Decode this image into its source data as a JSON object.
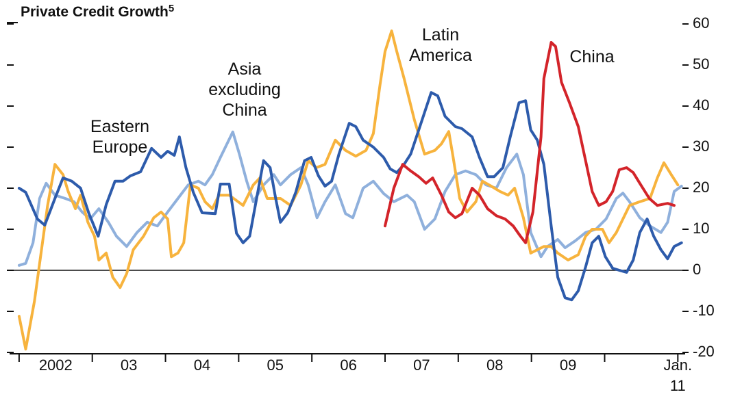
{
  "chart_data": {
    "type": "line",
    "title": "Private Credit Growth",
    "title_note": "5",
    "xlim": [
      2001.87,
      2011.1
    ],
    "ylim": [
      -20,
      60
    ],
    "yticks": [
      -20,
      -10,
      0,
      10,
      20,
      30,
      40,
      50,
      60
    ],
    "x_tick_marks": [
      2002,
      2003,
      2004,
      2005,
      2006,
      2007,
      2008,
      2009,
      2010,
      2011
    ],
    "xticks": [
      {
        "value": 2002.5,
        "label": "2002"
      },
      {
        "value": 2003.5,
        "label": "03"
      },
      {
        "value": 2004.5,
        "label": "04"
      },
      {
        "value": 2005.5,
        "label": "05"
      },
      {
        "value": 2006.5,
        "label": "06"
      },
      {
        "value": 2007.5,
        "label": "07"
      },
      {
        "value": 2008.5,
        "label": "08"
      },
      {
        "value": 2009.5,
        "label": "09"
      },
      {
        "value": 2011,
        "label": "Jan. 11"
      }
    ],
    "zero_line": 0,
    "series": [
      {
        "name": "Asia excluding China",
        "color": "#8fb0dc",
        "x": [
          2002.0,
          2002.09,
          2002.19,
          2002.28,
          2002.37,
          2002.49,
          2002.63,
          2002.75,
          2002.86,
          2002.97,
          2003.09,
          2003.22,
          2003.33,
          2003.47,
          2003.61,
          2003.75,
          2003.89,
          2004.03,
          2004.17,
          2004.31,
          2004.45,
          2004.54,
          2004.64,
          2004.75,
          2004.92,
          2005.01,
          2005.11,
          2005.2,
          2005.34,
          2005.48,
          2005.57,
          2005.71,
          2005.85,
          2005.95,
          2006.07,
          2006.18,
          2006.32,
          2006.46,
          2006.56,
          2006.7,
          2006.84,
          2006.98,
          2007.12,
          2007.3,
          2007.4,
          2007.54,
          2007.68,
          2007.82,
          2007.96,
          2008.1,
          2008.24,
          2008.38,
          2008.52,
          2008.66,
          2008.8,
          2008.89,
          2008.99,
          2009.13,
          2009.22,
          2009.36,
          2009.46,
          2009.6,
          2009.74,
          2009.88,
          2010.02,
          2010.16,
          2010.25,
          2010.34,
          2010.48,
          2010.62,
          2010.77,
          2010.86,
          2010.95,
          2011.05
        ],
        "values": [
          1.2,
          1.7,
          6.7,
          17.5,
          21.2,
          18.3,
          17.5,
          16.7,
          14.2,
          12.5,
          15,
          11.7,
          8.3,
          5.8,
          9.2,
          11.7,
          10.8,
          14.2,
          17.5,
          20.8,
          21.7,
          20.8,
          23.3,
          27.5,
          33.7,
          28.3,
          21.7,
          16.7,
          20.8,
          23.3,
          20.8,
          23.3,
          25,
          20.8,
          12.8,
          16.7,
          20.8,
          13.8,
          12.8,
          20,
          21.7,
          18.7,
          16.7,
          18.3,
          16.7,
          10,
          12.5,
          19.2,
          23.3,
          24.2,
          23.3,
          20.8,
          20,
          25,
          28.3,
          23.3,
          9.2,
          3.3,
          5.8,
          7.5,
          5.5,
          7.2,
          9.2,
          10,
          12.5,
          17.5,
          18.8,
          16.7,
          12.8,
          10.8,
          9.2,
          11.7,
          19.2,
          20.5
        ]
      },
      {
        "name": "Latin America",
        "color": "#f7b33d",
        "x": [
          2002.0,
          2002.09,
          2002.21,
          2002.3,
          2002.39,
          2002.49,
          2002.6,
          2002.67,
          2002.77,
          2002.84,
          2002.94,
          2003.03,
          2003.09,
          2003.19,
          2003.28,
          2003.38,
          2003.47,
          2003.56,
          2003.7,
          2003.84,
          2003.94,
          2004.03,
          2004.08,
          2004.17,
          2004.25,
          2004.34,
          2004.45,
          2004.54,
          2004.64,
          2004.73,
          2004.87,
          2005.06,
          2005.2,
          2005.29,
          2005.39,
          2005.57,
          2005.71,
          2005.85,
          2005.95,
          2006.06,
          2006.18,
          2006.32,
          2006.46,
          2006.6,
          2006.74,
          2006.84,
          2006.93,
          2007.0,
          2007.09,
          2007.16,
          2007.26,
          2007.4,
          2007.54,
          2007.68,
          2007.77,
          2007.87,
          2007.93,
          2008.02,
          2008.12,
          2008.24,
          2008.33,
          2008.45,
          2008.57,
          2008.68,
          2008.77,
          2008.89,
          2008.99,
          2009.08,
          2009.17,
          2009.27,
          2009.36,
          2009.5,
          2009.64,
          2009.74,
          2009.83,
          2009.97,
          2010.06,
          2010.16,
          2010.25,
          2010.34,
          2010.48,
          2010.62,
          2010.72,
          2010.81,
          2010.91,
          2011.0
        ],
        "values": [
          -11.2,
          -19.2,
          -7.5,
          4.2,
          15.8,
          25.8,
          23.3,
          19.2,
          15,
          18.3,
          11.7,
          8.3,
          2.5,
          4.2,
          -1.7,
          -4.2,
          -0.8,
          5,
          8.3,
          12.8,
          14.2,
          12.5,
          3.3,
          4.2,
          6.7,
          20.8,
          20,
          16.7,
          15,
          18.3,
          18.3,
          15.8,
          20.8,
          22.5,
          17.5,
          17.5,
          15.8,
          20.8,
          26.7,
          25,
          25.8,
          31.7,
          29.2,
          27.8,
          29.2,
          33.3,
          45,
          53.3,
          58.3,
          53.3,
          46.7,
          36.7,
          28.3,
          29.2,
          30.8,
          33.8,
          27.5,
          17.5,
          14.2,
          16.7,
          21.7,
          20.5,
          19.2,
          18.3,
          20,
          12.8,
          4.2,
          5,
          5.8,
          5.8,
          4.2,
          2.5,
          3.8,
          8.3,
          10,
          10,
          6.7,
          9.2,
          12.5,
          15.8,
          16.7,
          17.5,
          22.5,
          26.2,
          23.3,
          20.8
        ]
      },
      {
        "name": "Eastern Europe",
        "color": "#2d5bab",
        "x": [
          2002.0,
          2002.09,
          2002.25,
          2002.35,
          2002.49,
          2002.6,
          2002.72,
          2002.84,
          2002.95,
          2003.08,
          2003.19,
          2003.31,
          2003.42,
          2003.52,
          2003.66,
          2003.81,
          2003.94,
          2004.03,
          2004.12,
          2004.19,
          2004.28,
          2004.38,
          2004.5,
          2004.68,
          2004.75,
          2004.87,
          2004.97,
          2005.06,
          2005.15,
          2005.25,
          2005.34,
          2005.43,
          2005.5,
          2005.57,
          2005.67,
          2005.78,
          2005.9,
          2005.99,
          2006.09,
          2006.18,
          2006.27,
          2006.37,
          2006.51,
          2006.6,
          2006.7,
          2006.84,
          2006.98,
          2007.07,
          2007.16,
          2007.26,
          2007.35,
          2007.49,
          2007.63,
          2007.72,
          2007.82,
          2007.96,
          2008.05,
          2008.19,
          2008.29,
          2008.4,
          2008.49,
          2008.61,
          2008.71,
          2008.83,
          2008.92,
          2008.99,
          2009.08,
          2009.17,
          2009.27,
          2009.36,
          2009.46,
          2009.55,
          2009.64,
          2009.74,
          2009.83,
          2009.92,
          2010.01,
          2010.11,
          2010.2,
          2010.3,
          2010.39,
          2010.48,
          2010.58,
          2010.67,
          2010.77,
          2010.86,
          2010.95,
          2011.05
        ],
        "values": [
          20,
          19,
          12.5,
          11,
          17.5,
          22.5,
          21.7,
          20,
          14,
          8.3,
          16,
          21.7,
          21.7,
          23,
          24,
          29.7,
          27.5,
          29,
          28,
          32.5,
          25,
          19,
          14,
          13.8,
          21,
          21,
          9,
          6.7,
          8.3,
          18,
          26.7,
          25,
          18,
          11.7,
          14,
          19,
          26.7,
          27.5,
          23,
          20.5,
          21.7,
          28.3,
          35.8,
          35,
          31.7,
          30,
          27.5,
          24.7,
          23.8,
          25.8,
          28.3,
          35.8,
          43.3,
          42.5,
          37.5,
          35,
          34.5,
          32.5,
          27.5,
          22.8,
          22.8,
          25,
          32.5,
          40.8,
          41.3,
          34.2,
          31.7,
          25.8,
          10.8,
          -1.7,
          -6.7,
          -7.2,
          -5,
          0.8,
          6.7,
          8.3,
          3.3,
          0.5,
          0,
          -0.5,
          2.5,
          9.2,
          12.5,
          8.3,
          5,
          2.8,
          5.8,
          6.7
        ]
      },
      {
        "name": "China",
        "color": "#d3242a",
        "x": [
          2007.0,
          2007.12,
          2007.24,
          2007.35,
          2007.46,
          2007.56,
          2007.65,
          2007.77,
          2007.87,
          2007.96,
          2008.05,
          2008.19,
          2008.29,
          2008.4,
          2008.52,
          2008.64,
          2008.75,
          2008.85,
          2008.92,
          2009.02,
          2009.13,
          2009.17,
          2009.27,
          2009.33,
          2009.41,
          2009.52,
          2009.64,
          2009.74,
          2009.83,
          2009.92,
          2010.02,
          2010.11,
          2010.2,
          2010.3,
          2010.39,
          2010.48,
          2010.61,
          2010.72,
          2010.86,
          2010.95
        ],
        "values": [
          10.8,
          20,
          25.8,
          24.2,
          22.8,
          21.2,
          22.5,
          18.3,
          14.2,
          12.8,
          13.8,
          20,
          18.3,
          15,
          13.3,
          12.5,
          10.8,
          8.3,
          6.7,
          14.2,
          32.5,
          46.7,
          55.5,
          54.5,
          45.8,
          40.8,
          35,
          26.7,
          19.2,
          15.8,
          16.7,
          19.2,
          24.5,
          25,
          23.8,
          21.2,
          17.5,
          15.8,
          16.3,
          15.8
        ]
      }
    ]
  }
}
